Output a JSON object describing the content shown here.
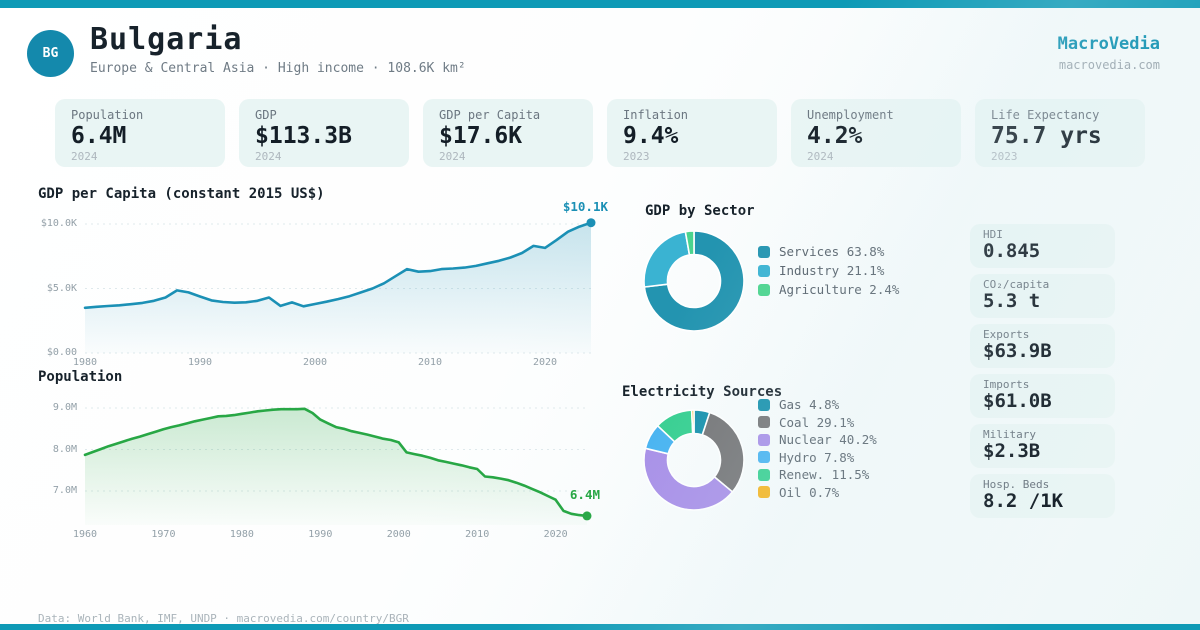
{
  "colors": {
    "accent": "#0e9ab6",
    "badge": "#1489ac",
    "brand": "#0b8fb0",
    "card_bg": "#e9f5f4",
    "grid": "#dfe9ec",
    "text": "#17222b",
    "muted": "#6b7780"
  },
  "header": {
    "country_code": "BG",
    "title": "Bulgaria",
    "subtitle": "Europe & Central Asia · High income · 108.6K km²",
    "brand": "MacroVedia",
    "brand_url": "macrovedia.com"
  },
  "stat_cards": [
    {
      "label": "Population",
      "value": "6.4M",
      "year": "2024"
    },
    {
      "label": "GDP",
      "value": "$113.3B",
      "year": "2024"
    },
    {
      "label": "GDP per Capita",
      "value": "$17.6K",
      "year": "2024"
    },
    {
      "label": "Inflation",
      "value": "9.4%",
      "year": "2023"
    },
    {
      "label": "Unemployment",
      "value": "4.2%",
      "year": "2024"
    },
    {
      "label": "Life Expectancy",
      "value": "75.7 yrs",
      "year": "2023"
    }
  ],
  "side_cards": [
    {
      "label": "HDI",
      "value": "0.845"
    },
    {
      "label": "CO₂/capita",
      "value": "5.3 t"
    },
    {
      "label": "Exports",
      "value": "$63.9B"
    },
    {
      "label": "Imports",
      "value": "$61.0B"
    },
    {
      "label": "Military",
      "value": "$2.3B"
    },
    {
      "label": "Hosp. Beds",
      "value": "8.2 /1K"
    }
  ],
  "footer": {
    "text": "Data: World Bank, IMF, UNDP · macrovedia.com/country/BGR"
  },
  "chart_data": [
    {
      "type": "area",
      "title": "GDP per Capita (constant 2015 US$)",
      "color": "#1b90b5",
      "end_label": "$10.1K",
      "ylim": [
        0,
        10.5
      ],
      "grid": true,
      "legend_position": "none",
      "yticks": [
        {
          "label": "$10.0K",
          "value": 10
        },
        {
          "label": "$5.0K",
          "value": 5
        },
        {
          "label": "$0.00",
          "value": 0
        }
      ],
      "xticks": [
        {
          "label": "1980",
          "value": 1980
        },
        {
          "label": "1990",
          "value": 1990
        },
        {
          "label": "2000",
          "value": 2000
        },
        {
          "label": "2010",
          "value": 2010
        },
        {
          "label": "2020",
          "value": 2020
        }
      ],
      "x": [
        1980,
        1981,
        1982,
        1983,
        1984,
        1985,
        1986,
        1987,
        1988,
        1989,
        1990,
        1991,
        1992,
        1993,
        1994,
        1995,
        1996,
        1997,
        1998,
        1999,
        2000,
        2001,
        2002,
        2003,
        2004,
        2005,
        2006,
        2007,
        2008,
        2009,
        2010,
        2011,
        2012,
        2013,
        2014,
        2015,
        2016,
        2017,
        2018,
        2019,
        2020,
        2021,
        2022,
        2023,
        2024
      ],
      "values": [
        3.5,
        3.58,
        3.64,
        3.7,
        3.78,
        3.88,
        4.05,
        4.3,
        4.85,
        4.7,
        4.38,
        4.08,
        3.95,
        3.9,
        3.93,
        4.05,
        4.3,
        3.65,
        3.92,
        3.62,
        3.8,
        3.98,
        4.18,
        4.4,
        4.7,
        5.0,
        5.4,
        5.95,
        6.5,
        6.3,
        6.35,
        6.5,
        6.55,
        6.62,
        6.75,
        6.95,
        7.15,
        7.4,
        7.75,
        8.3,
        8.15,
        8.75,
        9.4,
        9.8,
        10.1
      ]
    },
    {
      "type": "area",
      "title": "Population",
      "color": "#28a745",
      "end_label": "6.4M",
      "ylim": [
        6.18,
        9.4
      ],
      "grid": true,
      "legend_position": "none",
      "yticks": [
        {
          "label": "9.0M",
          "value": 9
        },
        {
          "label": "8.0M",
          "value": 8
        },
        {
          "label": "7.0M",
          "value": 7
        }
      ],
      "xticks": [
        {
          "label": "1960",
          "value": 1960
        },
        {
          "label": "1970",
          "value": 1970
        },
        {
          "label": "1980",
          "value": 1980
        },
        {
          "label": "1990",
          "value": 1990
        },
        {
          "label": "2000",
          "value": 2000
        },
        {
          "label": "2010",
          "value": 2010
        },
        {
          "label": "2020",
          "value": 2020
        }
      ],
      "x": [
        1960,
        1961,
        1962,
        1963,
        1964,
        1965,
        1966,
        1967,
        1968,
        1969,
        1970,
        1971,
        1972,
        1973,
        1974,
        1975,
        1976,
        1977,
        1978,
        1979,
        1980,
        1981,
        1982,
        1983,
        1984,
        1985,
        1986,
        1987,
        1988,
        1989,
        1990,
        1991,
        1992,
        1993,
        1994,
        1995,
        1996,
        1997,
        1998,
        1999,
        2000,
        2001,
        2002,
        2003,
        2004,
        2005,
        2006,
        2007,
        2008,
        2009,
        2010,
        2011,
        2012,
        2013,
        2014,
        2015,
        2016,
        2017,
        2018,
        2019,
        2020,
        2021,
        2022,
        2023,
        2024
      ],
      "values": [
        7.87,
        7.94,
        8.01,
        8.08,
        8.14,
        8.2,
        8.26,
        8.31,
        8.37,
        8.43,
        8.49,
        8.54,
        8.58,
        8.63,
        8.68,
        8.72,
        8.76,
        8.8,
        8.81,
        8.83,
        8.86,
        8.89,
        8.92,
        8.94,
        8.96,
        8.97,
        8.97,
        8.97,
        8.98,
        8.88,
        8.72,
        8.63,
        8.54,
        8.5,
        8.44,
        8.4,
        8.36,
        8.31,
        8.26,
        8.23,
        8.17,
        7.93,
        7.89,
        7.85,
        7.8,
        7.74,
        7.7,
        7.66,
        7.62,
        7.57,
        7.53,
        7.35,
        7.33,
        7.3,
        7.26,
        7.2,
        7.13,
        7.05,
        6.97,
        6.88,
        6.79,
        6.52,
        6.45,
        6.42,
        6.4
      ]
    },
    {
      "type": "donut",
      "title": "GDP by Sector",
      "labels": [
        "Services",
        "Industry",
        "Agriculture"
      ],
      "values": [
        63.8,
        21.1,
        2.4
      ],
      "colors": [
        "#2394b0",
        "#3ab3d2",
        "#4bd48e"
      ],
      "legend": [
        "Services 63.8%",
        "Industry 21.1%",
        "Agriculture 2.4%"
      ],
      "legend_position": "right"
    },
    {
      "type": "donut",
      "title": "Electricity Sources",
      "labels": [
        "Gas",
        "Coal",
        "Nuclear",
        "Hydro",
        "Renew.",
        "Oil"
      ],
      "values": [
        4.8,
        29.1,
        40.2,
        7.8,
        11.5,
        0.7
      ],
      "colors": [
        "#1791ad",
        "#757577",
        "#a88fe8",
        "#47b3f1",
        "#35cf90",
        "#f6b41d"
      ],
      "legend": [
        "Gas 4.8%",
        "Coal 29.1%",
        "Nuclear 40.2%",
        "Hydro 7.8%",
        "Renew. 11.5%",
        "Oil 0.7%"
      ],
      "legend_position": "right"
    }
  ]
}
